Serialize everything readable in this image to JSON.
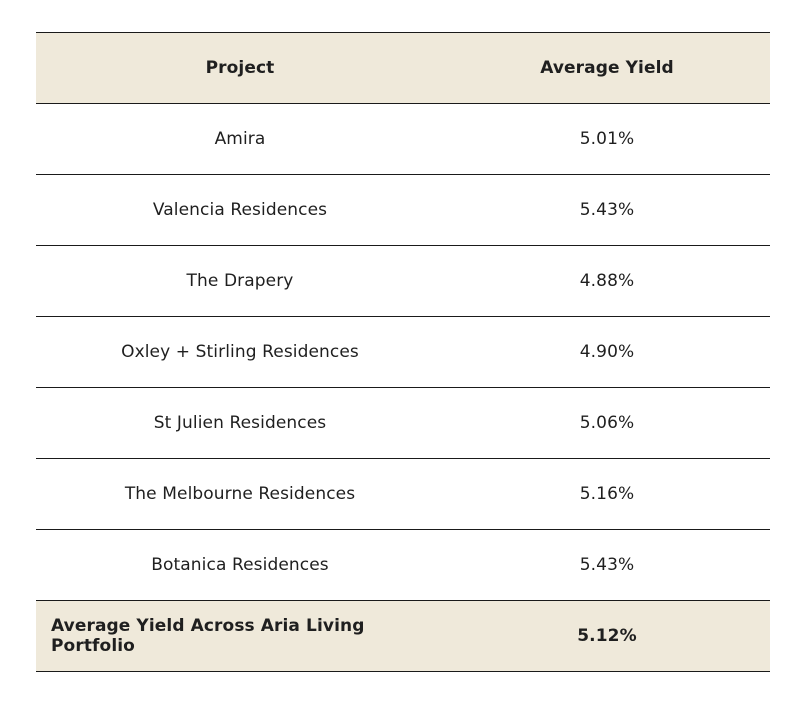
{
  "table": {
    "headers": {
      "project": "Project",
      "yield": "Average Yield"
    },
    "rows": [
      {
        "project": "Amira",
        "yield": "5.01%"
      },
      {
        "project": "Valencia Residences",
        "yield": "5.43%"
      },
      {
        "project": "The Drapery",
        "yield": "4.88%"
      },
      {
        "project": "Oxley + Stirling Residences",
        "yield": "4.90%"
      },
      {
        "project": "St Julien Residences",
        "yield": "5.06%"
      },
      {
        "project": "The Melbourne Residences",
        "yield": "5.16%"
      },
      {
        "project": "Botanica Residences",
        "yield": "5.43%"
      }
    ],
    "summary": {
      "label": "Average Yield Across Aria Living Portfolio",
      "yield": "5.12%"
    }
  },
  "colors": {
    "header_bg": "#efe9da",
    "border": "#1a1a1a"
  }
}
